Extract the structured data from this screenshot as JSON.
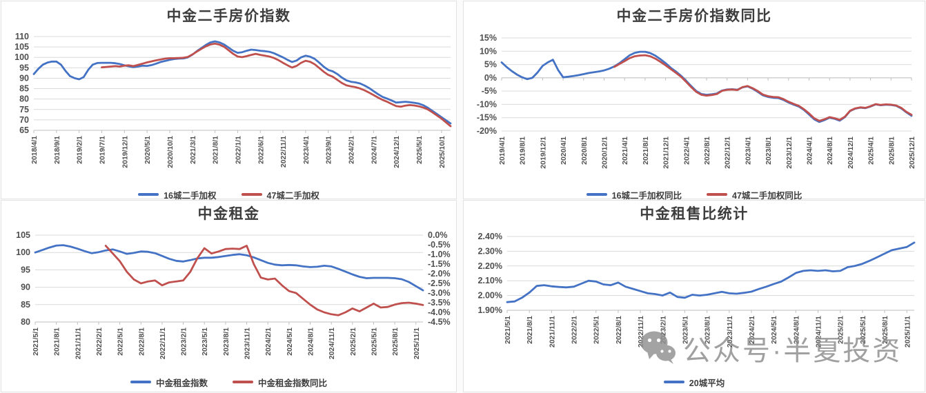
{
  "watermark": {
    "icon": "wechat-icon",
    "text": "公众号·半夏投资"
  },
  "colors": {
    "series_blue": "#4472C4",
    "series_red": "#C0504D",
    "gridline": "#d9d9d9",
    "axis_line": "#bfbfbf"
  },
  "chart_data": [
    {
      "id": "price-index",
      "type": "line",
      "title": "中金二手房价指数",
      "months": 93,
      "tick_step": 5,
      "xticklabels": [
        "2018/4/1",
        "2018/9/1",
        "2019/2/1",
        "2019/7/1",
        "2019/12/1",
        "2020/5/1",
        "2020/10/1",
        "2021/3/1",
        "2021/8/1",
        "2022/1/1",
        "2022/6/1",
        "2022/11/1",
        "2023/4/1",
        "2023/9/1",
        "2024/2/1",
        "2024/7/1",
        "2024/12/1",
        "2025/5/1",
        "2025/10/1"
      ],
      "ylim": [
        65,
        110
      ],
      "yticklabels": [
        "110",
        "105",
        "100",
        "95",
        "90",
        "85",
        "80",
        "75",
        "70",
        "65"
      ],
      "grid": true,
      "legend_position": "bottom",
      "series": [
        {
          "name": "16城二手加权",
          "color": "#4472C4",
          "axis": "left",
          "start": 0,
          "values": [
            92,
            94.5,
            96.5,
            97.5,
            98,
            98,
            96.5,
            93.5,
            91,
            90,
            89.5,
            90.5,
            94,
            96.5,
            97.3,
            97.4,
            97.4,
            97.4,
            97.2,
            96.8,
            96.2,
            95.7,
            95.3,
            95.6,
            96,
            95.9,
            96.3,
            97,
            97.8,
            98.3,
            98.8,
            99.2,
            99.4,
            99.5,
            100,
            101.3,
            103,
            104.5,
            106,
            107.2,
            107.7,
            107.2,
            106.2,
            104.7,
            103.2,
            102.2,
            102.5,
            103.2,
            103.7,
            103.5,
            103.2,
            103,
            102.7,
            102,
            101,
            100,
            98.8,
            97.8,
            98.5,
            100,
            100.8,
            100.3,
            99.3,
            97.5,
            95.5,
            94,
            93.3,
            92,
            90.3,
            89,
            88.3,
            88,
            87.5,
            86.5,
            85.3,
            83.8,
            82.3,
            81,
            80.2,
            79.3,
            78.3,
            78.5,
            78.7,
            78.5,
            78.2,
            77.8,
            77,
            75.8,
            74.3,
            72.8,
            71.3,
            69.8,
            68.3
          ]
        },
        {
          "name": "47城二手加权",
          "color": "#C0504D",
          "axis": "left",
          "start": 15,
          "values": [
            95.2,
            95.4,
            95.6,
            95.8,
            95.6,
            96,
            96.2,
            95.8,
            96.4,
            97,
            97.6,
            98.1,
            98.6,
            99,
            99.4,
            99.6,
            99.6,
            99.7,
            99.8,
            100.2,
            101.4,
            102.8,
            104.1,
            105.3,
            106.2,
            106.6,
            106.1,
            105.1,
            103.4,
            101.7,
            100.4,
            100.1,
            100.6,
            101.2,
            101.7,
            101.2,
            100.8,
            100.4,
            99.7,
            98.7,
            97.4,
            96.2,
            95.1,
            95.9,
            97.4,
            98.4,
            97.9,
            96.7,
            94.9,
            93.1,
            91.6,
            90.7,
            89.2,
            87.7,
            86.6,
            86.1,
            85.7,
            85.1,
            84.2,
            83.1,
            81.9,
            80.7,
            79.6,
            78.7,
            77.6,
            76.6,
            76.3,
            76.8,
            77.1,
            76.9,
            76.5,
            75.9,
            75,
            73.6,
            72.1,
            70.6,
            68.8,
            67
          ]
        }
      ]
    },
    {
      "id": "price-index-yoy",
      "type": "line",
      "title": "中金二手房价指数同比",
      "months": 81,
      "tick_step": 4,
      "xticklabels": [
        "2019/4/1",
        "2019/8/1",
        "2019/12/1",
        "2020/4/1",
        "2020/8/1",
        "2020/12/1",
        "2021/4/1",
        "2021/8/1",
        "2021/12/1",
        "2022/4/1",
        "2022/8/1",
        "2022/12/1",
        "2023/4/1",
        "2023/8/1",
        "2023/12/1",
        "2024/4/1",
        "2024/8/1",
        "2024/12/1",
        "2025/4/1",
        "2025/8/1",
        "2025/12/1"
      ],
      "ylim": [
        -20,
        15
      ],
      "yticklabels": [
        "15%",
        "10%",
        "5%",
        "0%",
        "-5%",
        "-10%",
        "-15%",
        "-20%"
      ],
      "axis_line_at": 0,
      "grid": true,
      "legend_position": "bottom",
      "series": [
        {
          "name": "16城二手加权同比",
          "color": "#4472C4",
          "axis": "left",
          "start": 0,
          "values": [
            5.8,
            4,
            2.5,
            1.2,
            0.2,
            -0.5,
            0,
            2,
            4.5,
            5.8,
            6.8,
            3,
            0.2,
            0.4,
            0.7,
            1,
            1.4,
            1.8,
            2.1,
            2.4,
            2.8,
            3.4,
            4.3,
            5.5,
            7,
            8.5,
            9.4,
            9.8,
            9.8,
            9.3,
            8.3,
            7,
            5.5,
            3.8,
            2.4,
            0.8,
            -1.1,
            -3.1,
            -5,
            -6.1,
            -6.4,
            -6.2,
            -5.9,
            -4.8,
            -4.4,
            -4.3,
            -4.5,
            -3.6,
            -3.2,
            -4.1,
            -5.3,
            -6.6,
            -7.2,
            -7.5,
            -7.6,
            -8.3,
            -9.3,
            -10.1,
            -10.8,
            -12.1,
            -13.8,
            -15.6,
            -16.6,
            -15.9,
            -15,
            -15.4,
            -16.1,
            -14.8,
            -12.5,
            -11.6,
            -11.2,
            -11.4,
            -10.8,
            -10,
            -10.3,
            -10.1,
            -10.2,
            -10.5,
            -11.5,
            -13,
            -14.3
          ]
        },
        {
          "name": "47城二手加权同比",
          "color": "#C0504D",
          "axis": "left",
          "start": 22,
          "values": [
            4.1,
            5.2,
            6.3,
            7.4,
            8.1,
            8.4,
            8.5,
            8.1,
            7.2,
            6,
            4.7,
            3.3,
            1.9,
            0.4,
            -1.5,
            -3.5,
            -5.3,
            -6.4,
            -6.7,
            -6.5,
            -6.1,
            -4.9,
            -4.5,
            -4.4,
            -4.6,
            -3.5,
            -3.1,
            -3.9,
            -5,
            -6.3,
            -6.9,
            -7.2,
            -7.3,
            -8,
            -9,
            -9.8,
            -10.5,
            -11.8,
            -13.4,
            -15.2,
            -16.2,
            -15.6,
            -14.8,
            -15.2,
            -15.8,
            -14.6,
            -12.4,
            -11.5,
            -11.1,
            -11.3,
            -10.7,
            -9.9,
            -10.2,
            -10,
            -10.1,
            -10.4,
            -11.3,
            -12.8,
            -13.9
          ]
        }
      ]
    },
    {
      "id": "rent-index",
      "type": "line",
      "title": "中金租金",
      "months": 56,
      "tick_step": 3,
      "xticklabels": [
        "2021/5/1",
        "2021/8/1",
        "2021/11/1",
        "2022/2/1",
        "2022/5/1",
        "2022/8/1",
        "2022/11/1",
        "2023/2/1",
        "2023/5/1",
        "2023/8/1",
        "2023/11/1",
        "2024/2/1",
        "2024/5/1",
        "2024/8/1",
        "2024/11/1",
        "2025/2/1",
        "2025/5/1",
        "2025/8/1",
        "2025/11/1"
      ],
      "ylim": [
        80,
        105
      ],
      "yticklabels": [
        "105",
        "100",
        "95",
        "90",
        "85",
        "80"
      ],
      "y2lim": [
        -4.5,
        0
      ],
      "y2ticklabels": [
        "0.0%",
        "-0.5%",
        "-1.0%",
        "-1.5%",
        "-2.0%",
        "-2.5%",
        "-3.0%",
        "-3.5%",
        "-4.0%",
        "-4.5%"
      ],
      "grid": true,
      "legend_position": "bottom",
      "series": [
        {
          "name": "中金租金指数",
          "color": "#4472C4",
          "axis": "left",
          "start": 0,
          "values": [
            100,
            100.7,
            101.4,
            102,
            102.1,
            101.7,
            101.1,
            100.4,
            99.8,
            100.1,
            100.6,
            100.9,
            100.3,
            99.6,
            99.9,
            100.3,
            100.2,
            99.8,
            99,
            98.2,
            97.6,
            97.4,
            97.8,
            98.3,
            98.5,
            98.5,
            98.7,
            99,
            99.3,
            99.5,
            99.2,
            98.6,
            97.8,
            97,
            96.5,
            96.3,
            96.4,
            96.3,
            96,
            95.8,
            95.9,
            96.2,
            96,
            95.3,
            94.5,
            93.7,
            93,
            92.6,
            92.7,
            92.7,
            92.7,
            92.6,
            92.3,
            91.5,
            90.3,
            89.1
          ]
        },
        {
          "name": "中金租金指数同比",
          "color": "#C0504D",
          "axis": "right",
          "start": 10,
          "values": [
            -0.55,
            -0.95,
            -1.35,
            -1.9,
            -2.3,
            -2.5,
            -2.4,
            -2.35,
            -2.6,
            -2.45,
            -2.4,
            -2.35,
            -1.9,
            -1.2,
            -0.68,
            -0.95,
            -0.85,
            -0.72,
            -0.7,
            -0.72,
            -0.55,
            -1.5,
            -2.2,
            -2.3,
            -2.25,
            -2.6,
            -2.9,
            -3,
            -3.3,
            -3.6,
            -3.85,
            -4,
            -4.1,
            -4.15,
            -4,
            -3.8,
            -3.95,
            -3.75,
            -3.55,
            -3.75,
            -3.72,
            -3.6,
            -3.52,
            -3.5,
            -3.55,
            -3.62
          ]
        }
      ]
    },
    {
      "id": "rent-to-price-ratio",
      "type": "line",
      "title": "中金租售比统计",
      "months": 56,
      "tick_step": 3,
      "xticklabels": [
        "2021/5/1",
        "2021/8/1",
        "2021/11/1",
        "2022/2/1",
        "2022/5/1",
        "2022/8/1",
        "2022/11/1",
        "2023/2/1",
        "2023/5/1",
        "2023/8/1",
        "2023/11/1",
        "2024/2/1",
        "2024/5/1",
        "2024/8/1",
        "2024/11/1",
        "2025/2/1",
        "2025/5/1",
        "2025/8/1",
        "2025/11/1"
      ],
      "ylim": [
        1.9,
        2.4
      ],
      "yticklabels": [
        "2.40%",
        "2.30%",
        "2.20%",
        "2.10%",
        "2.00%",
        "1.90%"
      ],
      "grid": true,
      "legend_position": "bottom",
      "series": [
        {
          "name": "20城平均",
          "color": "#4472C4",
          "axis": "left",
          "start": 0,
          "values": [
            1.955,
            1.96,
            1.985,
            2.02,
            2.065,
            2.07,
            2.062,
            2.058,
            2.055,
            2.06,
            2.08,
            2.1,
            2.095,
            2.075,
            2.07,
            2.088,
            2.06,
            2.045,
            2.03,
            2.015,
            2.01,
            2.0,
            2.02,
            1.99,
            1.985,
            2.005,
            2.0,
            2.005,
            2.015,
            2.025,
            2.015,
            2.012,
            2.018,
            2.026,
            2.044,
            2.06,
            2.078,
            2.094,
            2.122,
            2.153,
            2.167,
            2.171,
            2.167,
            2.171,
            2.164,
            2.167,
            2.192,
            2.201,
            2.215,
            2.236,
            2.26,
            2.284,
            2.308,
            2.318,
            2.329,
            2.359
          ]
        }
      ]
    }
  ]
}
